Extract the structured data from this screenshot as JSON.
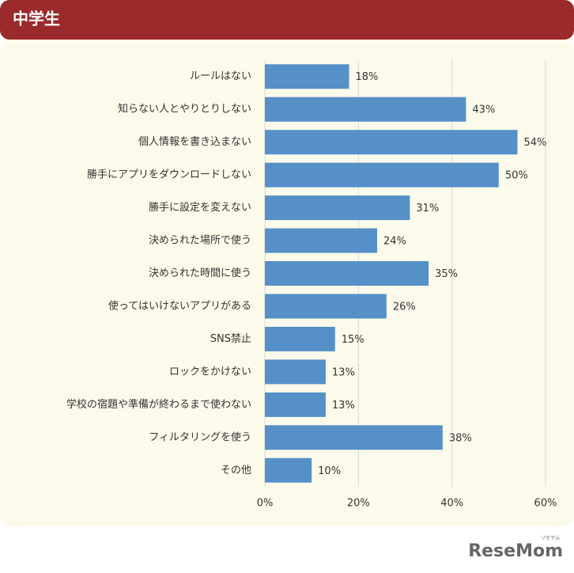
{
  "header": {
    "title": "中学生"
  },
  "chart_data": {
    "type": "bar",
    "orientation": "horizontal",
    "categories": [
      "ルールはない",
      "知らない人とやりとりしない",
      "個人情報を書き込まない",
      "勝手にアプリをダウンロードしない",
      "勝手に設定を変えない",
      "決められた場所で使う",
      "決められた時間に使う",
      "使ってはいけないアプリがある",
      "SNS禁止",
      "ロックをかけない",
      "学校の宿題や準備が終わるまで使わない",
      "フィルタリングを使う",
      "その他"
    ],
    "values": [
      18,
      43,
      54,
      50,
      31,
      24,
      35,
      26,
      15,
      13,
      13,
      38,
      10
    ],
    "value_labels": [
      "18%",
      "43%",
      "54%",
      "50%",
      "31%",
      "24%",
      "35%",
      "26%",
      "15%",
      "13%",
      "13%",
      "38%",
      "10%"
    ],
    "color": "#5590c8",
    "xlim": [
      0,
      60
    ],
    "xticks": [
      {
        "value": 0,
        "label": "0%"
      },
      {
        "value": 20,
        "label": "20%"
      },
      {
        "value": 40,
        "label": "40%"
      },
      {
        "value": 60,
        "label": "60%"
      }
    ],
    "grid": true
  },
  "watermark": {
    "logo": "ReseMom",
    "ruby": "リセマム"
  }
}
